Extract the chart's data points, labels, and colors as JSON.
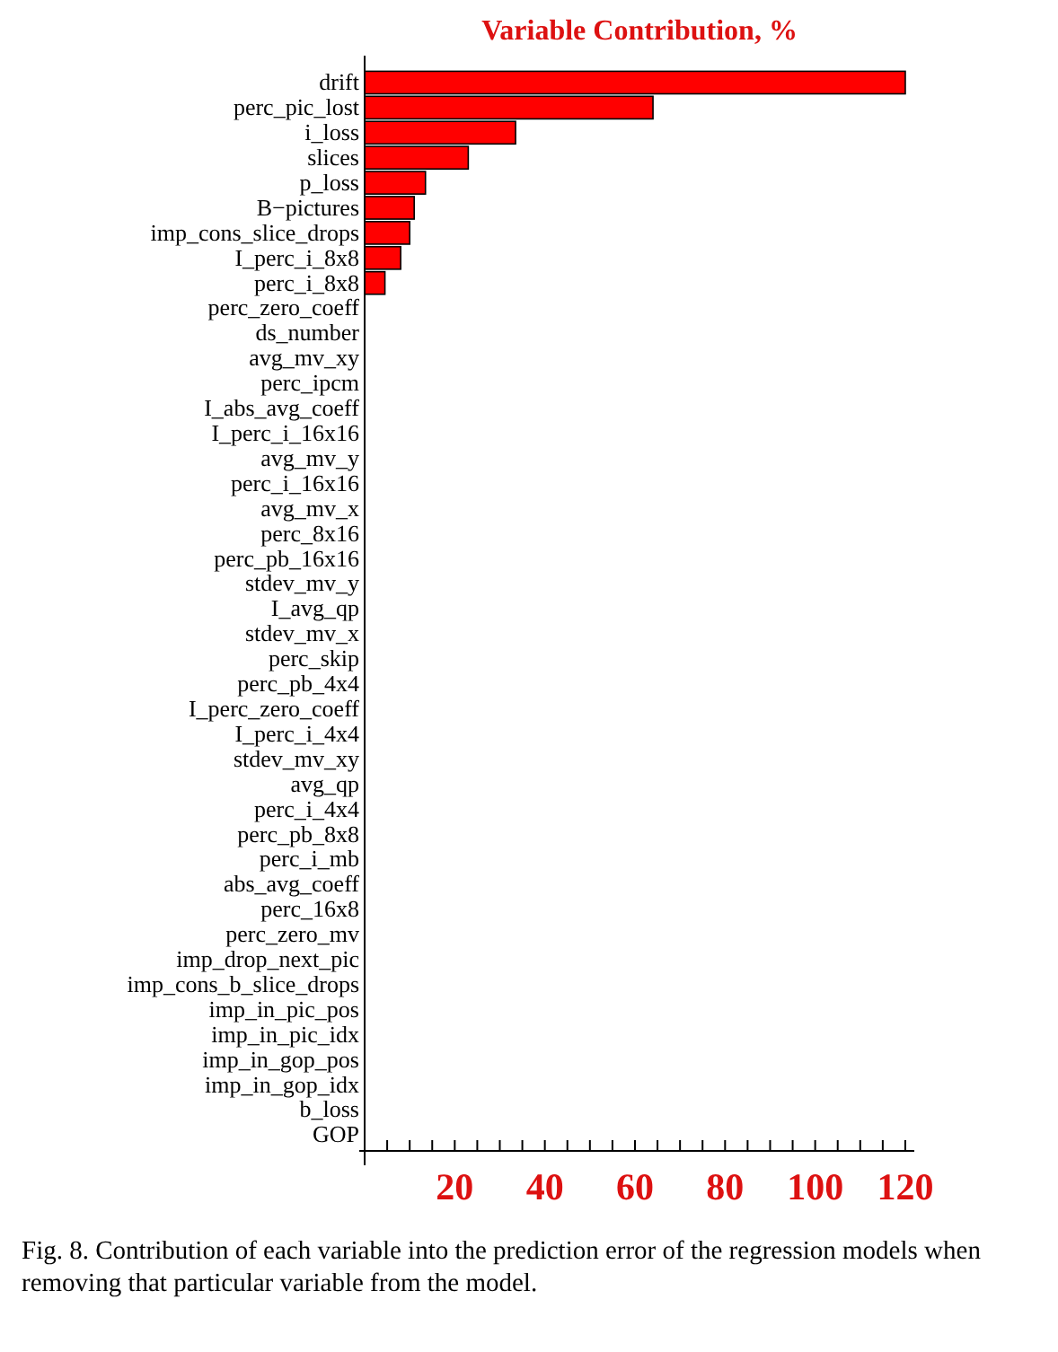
{
  "chart_data": {
    "type": "bar",
    "orientation": "horizontal",
    "title": "Variable Contribution, %",
    "categories": [
      "drift",
      "perc_pic_lost",
      "i_loss",
      "slices",
      "p_loss",
      "B−pictures",
      "imp_cons_slice_drops",
      "I_perc_i_8x8",
      "perc_i_8x8",
      "perc_zero_coeff",
      "ds_number",
      "avg_mv_xy",
      "perc_ipcm",
      "I_abs_avg_coeff",
      "I_perc_i_16x16",
      "avg_mv_y",
      "perc_i_16x16",
      "avg_mv_x",
      "perc_8x16",
      "perc_pb_16x16",
      "stdev_mv_y",
      "I_avg_qp",
      "stdev_mv_x",
      "perc_skip",
      "perc_pb_4x4",
      "I_perc_zero_coeff",
      "I_perc_i_4x4",
      "stdev_mv_xy",
      "avg_qp",
      "perc_i_4x4",
      "perc_pb_8x8",
      "perc_i_mb",
      "abs_avg_coeff",
      "perc_16x8",
      "perc_zero_mv",
      "imp_drop_next_pic",
      "imp_cons_b_slice_drops",
      "imp_in_pic_pos",
      "imp_in_pic_idx",
      "imp_in_gop_pos",
      "imp_in_gop_idx",
      "b_loss",
      "GOP"
    ],
    "values": [
      120,
      64,
      33.5,
      23,
      13.5,
      11,
      10,
      8,
      4.5,
      0,
      0,
      0,
      0,
      0,
      0,
      0,
      0,
      0,
      0,
      0,
      0,
      0,
      0,
      0,
      0,
      0,
      0,
      0,
      0,
      0,
      0,
      0,
      0,
      0,
      0,
      0,
      0,
      0,
      0,
      0,
      0,
      0,
      0
    ],
    "color": "#ff0000",
    "xlim": [
      0,
      122
    ],
    "xticks": [
      {
        "value": 5,
        "label": null
      },
      {
        "value": 10,
        "label": null
      },
      {
        "value": 15,
        "label": null
      },
      20,
      {
        "value": 25,
        "label": null
      },
      {
        "value": 30,
        "label": null
      },
      {
        "value": 35,
        "label": null
      },
      40,
      {
        "value": 45,
        "label": null
      },
      {
        "value": 50,
        "label": null
      },
      {
        "value": 55,
        "label": null
      },
      60,
      {
        "value": 65,
        "label": null
      },
      {
        "value": 70,
        "label": null
      },
      {
        "value": 75,
        "label": null
      },
      80,
      {
        "value": 85,
        "label": null
      },
      {
        "value": 90,
        "label": null
      },
      {
        "value": 95,
        "label": null
      },
      100,
      {
        "value": 105,
        "label": null
      },
      {
        "value": 110,
        "label": null
      },
      {
        "value": 115,
        "label": null
      },
      120
    ],
    "grid": false,
    "annotations": [
      "Fig. 8.   Contribution of each variable into the prediction error of the regression models when removing that particular variable from the model."
    ]
  }
}
